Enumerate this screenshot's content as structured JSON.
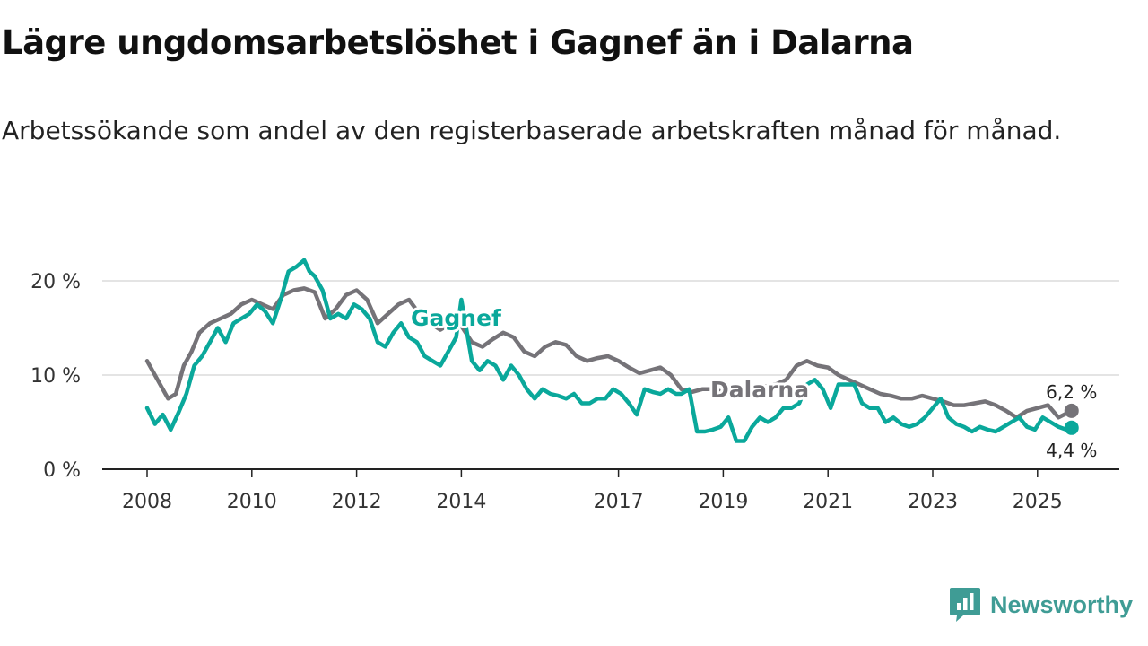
{
  "title": "Lägre ungdomsarbetslöshet i Gagnef än i Dalarna",
  "subtitle": "Arbetssökande som andel av den registerbaserade arbetskraften månad för månad.",
  "brand": {
    "name": "Newsworthy",
    "icon": "newsworthy-logo-icon"
  },
  "colors": {
    "gagnef": "#0aa89b",
    "dalarna": "#757378",
    "grid": "#dcdcdc",
    "axis": "#222222"
  },
  "chart_data": {
    "type": "line",
    "title": "Lägre ungdomsarbetslöshet i Gagnef än i Dalarna",
    "xlabel": "",
    "ylabel": "",
    "xlim": [
      2008,
      2026.5
    ],
    "ylim": [
      0,
      20
    ],
    "grid": true,
    "y_ticks": [
      {
        "value": 0,
        "label": "0 %"
      },
      {
        "value": 10,
        "label": "10 %"
      },
      {
        "value": 20,
        "label": "20 %"
      }
    ],
    "x_ticks": [
      {
        "value": 2008,
        "label": "2008"
      },
      {
        "value": 2010,
        "label": "2010"
      },
      {
        "value": 2012,
        "label": "2012"
      },
      {
        "value": 2014,
        "label": "2014"
      },
      {
        "value": 2017,
        "label": "2017"
      },
      {
        "value": 2019,
        "label": "2019"
      },
      {
        "value": 2021,
        "label": "2021"
      },
      {
        "value": 2023,
        "label": "2023"
      },
      {
        "value": 2025,
        "label": "2025"
      }
    ],
    "series": [
      {
        "name": "Dalarna",
        "label": "Dalarna",
        "color": "#757378",
        "end_label": "6,2 %",
        "x": [
          2008.0,
          2008.2,
          2008.4,
          2008.55,
          2008.7,
          2008.85,
          2009.0,
          2009.2,
          2009.4,
          2009.6,
          2009.8,
          2010.0,
          2010.2,
          2010.4,
          2010.6,
          2010.8,
          2011.0,
          2011.2,
          2011.4,
          2011.6,
          2011.8,
          2012.0,
          2012.2,
          2012.4,
          2012.6,
          2012.8,
          2013.0,
          2013.2,
          2013.4,
          2013.6,
          2013.8,
          2014.0,
          2014.2,
          2014.4,
          2014.6,
          2014.8,
          2015.0,
          2015.2,
          2015.4,
          2015.6,
          2015.8,
          2016.0,
          2016.2,
          2016.4,
          2016.6,
          2016.8,
          2017.0,
          2017.2,
          2017.4,
          2017.6,
          2017.8,
          2018.0,
          2018.2,
          2018.4,
          2018.6,
          2018.8,
          2019.0,
          2019.2,
          2019.4,
          2019.6,
          2019.8,
          2020.0,
          2020.2,
          2020.4,
          2020.6,
          2020.8,
          2021.0,
          2021.2,
          2021.4,
          2021.6,
          2021.8,
          2022.0,
          2022.2,
          2022.4,
          2022.6,
          2022.8,
          2023.0,
          2023.2,
          2023.4,
          2023.6,
          2023.8,
          2024.0,
          2024.2,
          2024.4,
          2024.6,
          2024.8,
          2025.0,
          2025.2,
          2025.4,
          2025.65
        ],
        "values": [
          11.5,
          9.5,
          7.5,
          8.0,
          11.0,
          12.5,
          14.5,
          15.5,
          16.0,
          16.5,
          17.5,
          18.0,
          17.5,
          17.0,
          18.5,
          19.0,
          19.2,
          18.8,
          16.0,
          17.0,
          18.5,
          19.0,
          18.0,
          15.5,
          16.5,
          17.5,
          18.0,
          16.5,
          15.5,
          14.8,
          15.5,
          15.2,
          13.5,
          13.0,
          13.8,
          14.5,
          14.0,
          12.5,
          12.0,
          13.0,
          13.5,
          13.2,
          12.0,
          11.5,
          11.8,
          12.0,
          11.5,
          10.8,
          10.2,
          10.5,
          10.8,
          10.0,
          8.5,
          8.2,
          8.5,
          8.5,
          8.2,
          7.8,
          8.0,
          8.5,
          8.8,
          9.0,
          9.5,
          11.0,
          11.5,
          11.0,
          10.8,
          10.0,
          9.5,
          9.0,
          8.5,
          8.0,
          7.8,
          7.5,
          7.5,
          7.8,
          7.5,
          7.2,
          6.8,
          6.8,
          7.0,
          7.2,
          6.8,
          6.2,
          5.5,
          6.2,
          6.5,
          6.8,
          5.5,
          6.2
        ]
      },
      {
        "name": "Gagnef",
        "label": "Gagnef",
        "color": "#0aa89b",
        "end_label": "4,4 %",
        "x": [
          2008.0,
          2008.15,
          2008.3,
          2008.45,
          2008.6,
          2008.75,
          2008.9,
          2009.05,
          2009.2,
          2009.35,
          2009.5,
          2009.65,
          2009.8,
          2009.95,
          2010.1,
          2010.25,
          2010.4,
          2010.55,
          2010.7,
          2010.85,
          2011.0,
          2011.1,
          2011.2,
          2011.35,
          2011.5,
          2011.65,
          2011.8,
          2011.95,
          2012.1,
          2012.25,
          2012.4,
          2012.55,
          2012.7,
          2012.85,
          2013.0,
          2013.15,
          2013.3,
          2013.45,
          2013.6,
          2013.75,
          2013.9,
          2014.0,
          2014.2,
          2014.35,
          2014.5,
          2014.65,
          2014.8,
          2014.95,
          2015.1,
          2015.25,
          2015.4,
          2015.55,
          2015.7,
          2015.85,
          2016.0,
          2016.15,
          2016.3,
          2016.45,
          2016.6,
          2016.75,
          2016.9,
          2017.05,
          2017.2,
          2017.35,
          2017.5,
          2017.65,
          2017.8,
          2017.95,
          2018.1,
          2018.2,
          2018.35,
          2018.5,
          2018.65,
          2018.8,
          2018.95,
          2019.1,
          2019.25,
          2019.4,
          2019.55,
          2019.7,
          2019.85,
          2020.0,
          2020.15,
          2020.3,
          2020.45,
          2020.6,
          2020.75,
          2020.9,
          2021.05,
          2021.2,
          2021.35,
          2021.5,
          2021.65,
          2021.8,
          2021.95,
          2022.1,
          2022.25,
          2022.4,
          2022.55,
          2022.7,
          2022.85,
          2023.0,
          2023.15,
          2023.3,
          2023.45,
          2023.6,
          2023.75,
          2023.9,
          2024.05,
          2024.2,
          2024.35,
          2024.5,
          2024.65,
          2024.8,
          2024.95,
          2025.1,
          2025.25,
          2025.4,
          2025.55,
          2025.65
        ],
        "values": [
          6.5,
          4.8,
          5.8,
          4.2,
          6.0,
          8.0,
          11.0,
          12.0,
          13.5,
          15.0,
          13.5,
          15.5,
          16.0,
          16.5,
          17.5,
          16.8,
          15.5,
          18.0,
          21.0,
          21.5,
          22.2,
          21.0,
          20.5,
          19.0,
          16.0,
          16.5,
          16.0,
          17.5,
          17.0,
          16.0,
          13.5,
          13.0,
          14.5,
          15.5,
          14.0,
          13.5,
          12.0,
          11.5,
          11.0,
          12.5,
          14.0,
          18.0,
          11.5,
          10.5,
          11.5,
          11.0,
          9.5,
          11.0,
          10.0,
          8.5,
          7.5,
          8.5,
          8.0,
          7.8,
          7.5,
          8.0,
          7.0,
          7.0,
          7.5,
          7.5,
          8.5,
          8.0,
          7.0,
          5.8,
          8.5,
          8.2,
          8.0,
          8.5,
          8.0,
          8.0,
          8.5,
          4.0,
          4.0,
          4.2,
          4.5,
          5.5,
          3.0,
          3.0,
          4.5,
          5.5,
          5.0,
          5.5,
          6.5,
          6.5,
          7.0,
          9.0,
          9.5,
          8.5,
          6.5,
          9.0,
          9.0,
          9.0,
          7.0,
          6.5,
          6.5,
          5.0,
          5.5,
          4.8,
          4.5,
          4.8,
          5.5,
          6.5,
          7.5,
          5.5,
          4.8,
          4.5,
          4.0,
          4.5,
          4.2,
          4.0,
          4.5,
          5.0,
          5.5,
          4.5,
          4.2,
          5.5,
          5.0,
          4.5,
          4.2,
          4.4
        ]
      }
    ]
  }
}
